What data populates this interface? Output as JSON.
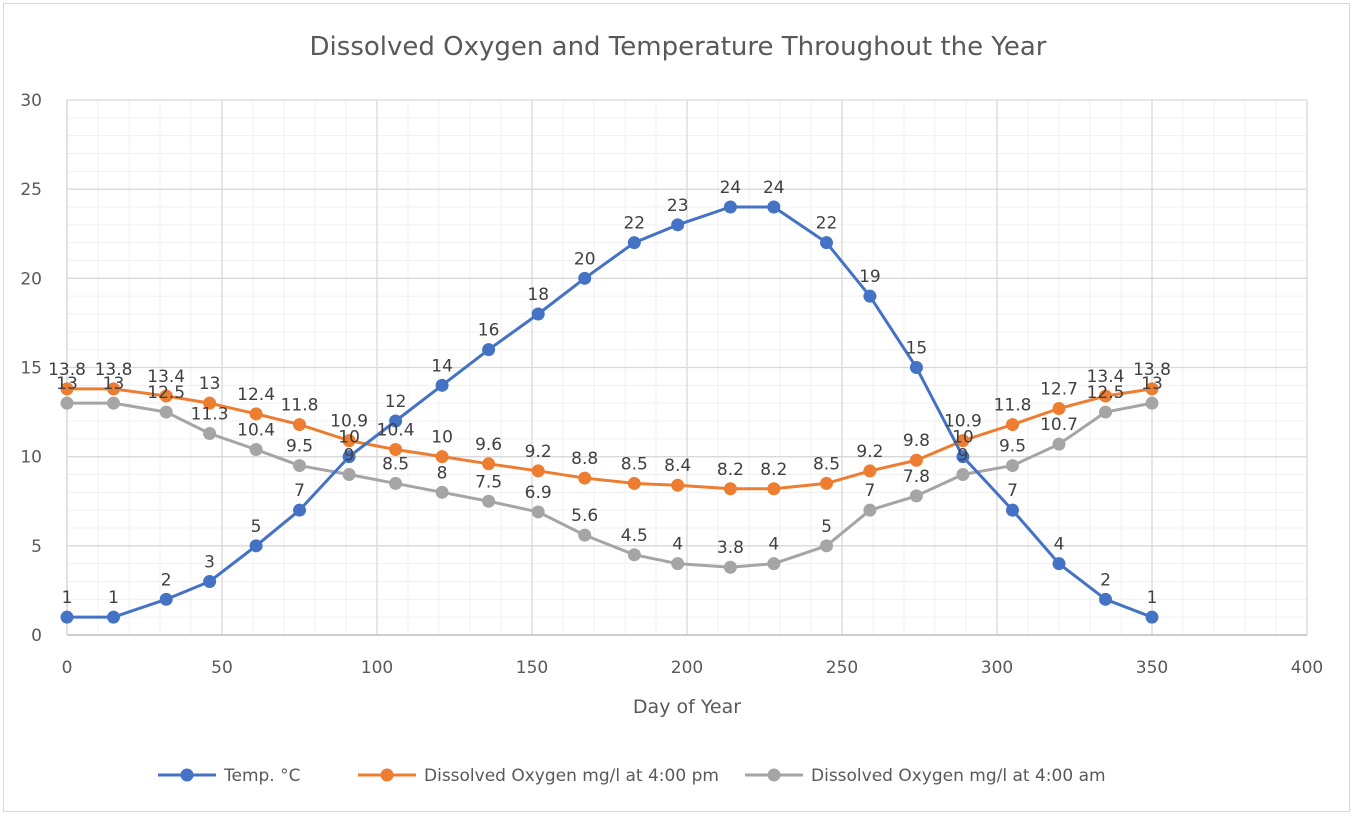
{
  "chart_data": {
    "type": "scatter",
    "subtype": "scatter-with-lines-and-markers",
    "title": "Dissolved Oxygen and Temperature Throughout the Year",
    "xlabel": "Day of Year",
    "ylabel": "",
    "xlim": [
      0,
      400
    ],
    "ylim": [
      0,
      30
    ],
    "xticks": [
      0,
      50,
      100,
      150,
      200,
      250,
      300,
      350,
      400
    ],
    "yticks": [
      0,
      5,
      10,
      15,
      20,
      25,
      30
    ],
    "x_minor_step": 10,
    "y_minor_step": 1,
    "grid": "major-and-minor",
    "legend_position": "bottom",
    "x": [
      0,
      15,
      32,
      46,
      61,
      75,
      91,
      106,
      121,
      136,
      152,
      167,
      183,
      197,
      214,
      228,
      245,
      259,
      274,
      289,
      305,
      320,
      335,
      350
    ],
    "series": [
      {
        "name": "Temp. °C",
        "color": "#4472C4",
        "values": [
          1,
          1,
          2,
          3,
          5,
          7,
          10,
          12,
          14,
          16,
          18,
          20,
          22,
          23,
          24,
          24,
          22,
          19,
          15,
          10,
          7,
          4,
          2,
          1
        ]
      },
      {
        "name": "Dissolved Oxygen mg/l at 4:00 pm",
        "color": "#ED7D31",
        "values": [
          13.8,
          13.8,
          13.4,
          13,
          12.4,
          11.8,
          10.9,
          10.4,
          10,
          9.6,
          9.2,
          8.8,
          8.5,
          8.4,
          8.2,
          8.2,
          8.5,
          9.2,
          9.8,
          10.9,
          11.8,
          12.7,
          13.4,
          13.8
        ]
      },
      {
        "name": "Dissolved Oxygen mg/l at 4:00 am",
        "color": "#A5A5A5",
        "values": [
          13,
          13,
          12.5,
          11.3,
          10.4,
          9.5,
          9,
          8.5,
          8,
          7.5,
          6.9,
          5.6,
          4.5,
          4,
          3.8,
          4,
          5,
          7,
          7.8,
          9,
          9.5,
          10.7,
          12.5,
          13
        ]
      }
    ],
    "data_labels": "above"
  }
}
